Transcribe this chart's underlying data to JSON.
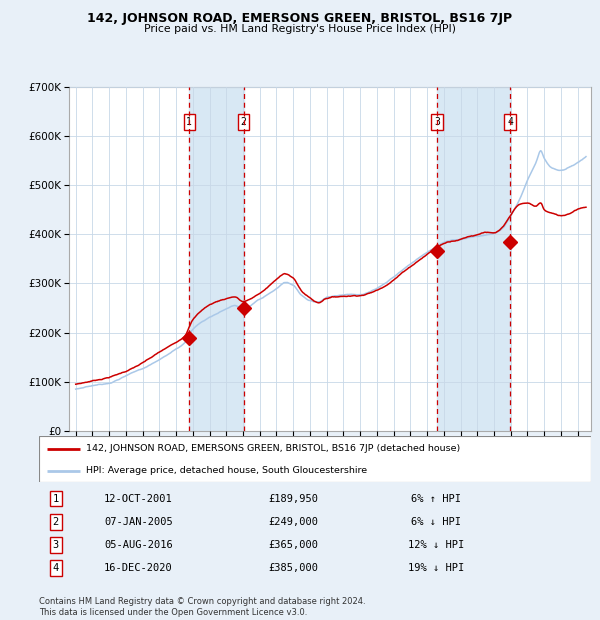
{
  "title": "142, JOHNSON ROAD, EMERSONS GREEN, BRISTOL, BS16 7JP",
  "subtitle": "Price paid vs. HM Land Registry's House Price Index (HPI)",
  "legend_line1": "142, JOHNSON ROAD, EMERSONS GREEN, BRISTOL, BS16 7JP (detached house)",
  "legend_line2": "HPI: Average price, detached house, South Gloucestershire",
  "footer": "Contains HM Land Registry data © Crown copyright and database right 2024.\nThis data is licensed under the Open Government Licence v3.0.",
  "transactions": [
    {
      "num": 1,
      "date": "12-OCT-2001",
      "price": 189950,
      "pct": "6%",
      "dir": "↑",
      "year": 2001.79
    },
    {
      "num": 2,
      "date": "07-JAN-2005",
      "price": 249000,
      "pct": "6%",
      "dir": "↓",
      "year": 2005.03
    },
    {
      "num": 3,
      "date": "05-AUG-2016",
      "price": 365000,
      "pct": "12%",
      "dir": "↓",
      "year": 2016.6
    },
    {
      "num": 4,
      "date": "16-DEC-2020",
      "price": 385000,
      "pct": "19%",
      "dir": "↓",
      "year": 2020.96
    }
  ],
  "hpi_color": "#aac8e8",
  "price_color": "#cc0000",
  "shade_color": "#d8e8f4",
  "grid_color": "#c8d8e8",
  "fig_bg": "#e8f0f8",
  "ylim": [
    0,
    700000
  ],
  "xlim_start": 1994.6,
  "xlim_end": 2025.8,
  "hpi_data": [
    [
      1995.0,
      85000
    ],
    [
      1996.0,
      93000
    ],
    [
      1997.0,
      100000
    ],
    [
      1998.0,
      115000
    ],
    [
      1999.0,
      130000
    ],
    [
      2000.0,
      148000
    ],
    [
      2001.0,
      170000
    ],
    [
      2001.5,
      182000
    ],
    [
      2002.0,
      210000
    ],
    [
      2003.0,
      235000
    ],
    [
      2004.0,
      252000
    ],
    [
      2004.5,
      258000
    ],
    [
      2005.0,
      252000
    ],
    [
      2006.0,
      268000
    ],
    [
      2007.0,
      288000
    ],
    [
      2007.5,
      300000
    ],
    [
      2008.0,
      295000
    ],
    [
      2008.5,
      275000
    ],
    [
      2009.0,
      265000
    ],
    [
      2009.5,
      262000
    ],
    [
      2010.0,
      272000
    ],
    [
      2011.0,
      278000
    ],
    [
      2012.0,
      280000
    ],
    [
      2013.0,
      292000
    ],
    [
      2014.0,
      315000
    ],
    [
      2015.0,
      340000
    ],
    [
      2016.0,
      365000
    ],
    [
      2016.5,
      375000
    ],
    [
      2017.0,
      385000
    ],
    [
      2017.5,
      390000
    ],
    [
      2018.0,
      392000
    ],
    [
      2018.5,
      395000
    ],
    [
      2019.0,
      398000
    ],
    [
      2019.5,
      402000
    ],
    [
      2020.0,
      405000
    ],
    [
      2020.5,
      415000
    ],
    [
      2021.0,
      440000
    ],
    [
      2021.5,
      470000
    ],
    [
      2022.0,
      510000
    ],
    [
      2022.5,
      545000
    ],
    [
      2022.8,
      570000
    ],
    [
      2023.0,
      555000
    ],
    [
      2023.5,
      535000
    ],
    [
      2024.0,
      530000
    ],
    [
      2024.5,
      535000
    ],
    [
      2025.0,
      545000
    ],
    [
      2025.5,
      558000
    ]
  ],
  "price_data": [
    [
      1995.0,
      95000
    ],
    [
      1996.0,
      102000
    ],
    [
      1997.0,
      110000
    ],
    [
      1998.0,
      122000
    ],
    [
      1999.0,
      138000
    ],
    [
      2000.0,
      158000
    ],
    [
      2001.0,
      178000
    ],
    [
      2001.5,
      192000
    ],
    [
      2002.0,
      225000
    ],
    [
      2003.0,
      255000
    ],
    [
      2004.0,
      268000
    ],
    [
      2004.5,
      272000
    ],
    [
      2005.0,
      262000
    ],
    [
      2006.0,
      278000
    ],
    [
      2007.0,
      305000
    ],
    [
      2007.5,
      318000
    ],
    [
      2008.0,
      308000
    ],
    [
      2008.5,
      282000
    ],
    [
      2009.0,
      268000
    ],
    [
      2009.5,
      258000
    ],
    [
      2010.0,
      268000
    ],
    [
      2011.0,
      272000
    ],
    [
      2012.0,
      275000
    ],
    [
      2013.0,
      285000
    ],
    [
      2014.0,
      308000
    ],
    [
      2015.0,
      335000
    ],
    [
      2016.0,
      360000
    ],
    [
      2016.5,
      372000
    ],
    [
      2017.0,
      382000
    ],
    [
      2017.5,
      388000
    ],
    [
      2018.0,
      392000
    ],
    [
      2018.5,
      398000
    ],
    [
      2019.0,
      402000
    ],
    [
      2019.5,
      408000
    ],
    [
      2020.0,
      405000
    ],
    [
      2020.5,
      415000
    ],
    [
      2021.0,
      438000
    ],
    [
      2021.5,
      460000
    ],
    [
      2022.0,
      462000
    ],
    [
      2022.5,
      455000
    ],
    [
      2022.8,
      462000
    ],
    [
      2023.0,
      448000
    ],
    [
      2023.5,
      440000
    ],
    [
      2024.0,
      435000
    ],
    [
      2024.5,
      440000
    ],
    [
      2025.0,
      450000
    ],
    [
      2025.5,
      455000
    ]
  ]
}
